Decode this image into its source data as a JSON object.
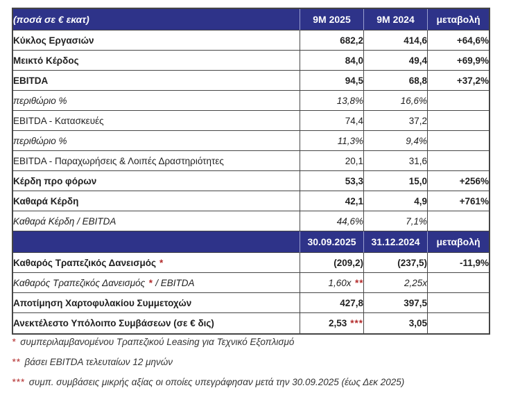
{
  "colors": {
    "header_bg": "#2E3389",
    "header_text": "#FFFFFF",
    "border": "#454545",
    "body_text": "#1F1F1F",
    "footnote_red": "#B22A2A"
  },
  "table": {
    "sections": [
      {
        "header": {
          "label": "(ποσά σε € εκατ)",
          "cols": [
            "9M 2025",
            "9M 2024",
            "μεταβολή"
          ]
        },
        "rows": [
          {
            "label": "Κύκλος Εργασιών",
            "style": "bold",
            "v1": "682,2",
            "v2": "414,6",
            "change": "+64,6%"
          },
          {
            "label": "Μεικτό Κέρδος",
            "style": "bold",
            "v1": "84,0",
            "v2": "49,4",
            "change": "+69,9%"
          },
          {
            "label": "EBITDA",
            "style": "bold",
            "v1": "94,5",
            "v2": "68,8",
            "change": "+37,2%"
          },
          {
            "label": "περιθώριο %",
            "style": "italic",
            "v1": "13,8%",
            "v2": "16,6%",
            "change": ""
          },
          {
            "label": "EBITDA - Κατασκευές",
            "style": "regular",
            "v1": "74,4",
            "v2": "37,2",
            "change": ""
          },
          {
            "label": "περιθώριο %",
            "style": "italic",
            "v1": "11,3%",
            "v2": "9,4%",
            "change": ""
          },
          {
            "label": "EBITDA - Παραχωρήσεις & Λοιπές Δραστηριότητες",
            "style": "regular",
            "v1": "20,1",
            "v2": "31,6",
            "change": ""
          },
          {
            "label": "Κέρδη προ φόρων",
            "style": "bold",
            "v1": "53,3",
            "v2": "15,0",
            "change": "+256%"
          },
          {
            "label": "Καθαρά Κέρδη",
            "style": "bold",
            "v1": "42,1",
            "v2": "4,9",
            "change": "+761%"
          },
          {
            "label": "Καθαρά Κέρδη / EBITDA",
            "style": "italic",
            "v1": "44,6%",
            "v2": "7,1%",
            "change": ""
          }
        ]
      },
      {
        "header": {
          "label": "",
          "cols": [
            "30.09.2025",
            "31.12.2024",
            "μεταβολή"
          ]
        },
        "rows": [
          {
            "label": "Καθαρός Τραπεζικός Δανεισμός",
            "label_note": "*",
            "label_after": "",
            "style": "bold",
            "v1": "(209,2)",
            "v2": "(237,5)",
            "change": "-11,9%"
          },
          {
            "label": "Καθαρός Τραπεζικός Δανεισμός",
            "label_note": "*",
            "label_after": " / EBITDA",
            "style": "italic",
            "v1": "1,60x",
            "v1_note": "**",
            "v2": "2,25x",
            "change": ""
          },
          {
            "label": "Αποτίμηση Χαρτοφυλακίου Συμμετοχών",
            "style": "bold",
            "v1": "427,8",
            "v2": "397,5",
            "change": ""
          },
          {
            "label": "Ανεκτέλεστο Υπόλοιπο Συμβάσεων (σε € δις)",
            "style": "bold",
            "v1": "2,53",
            "v1_note": "***",
            "v2": "3,05",
            "change": ""
          }
        ]
      }
    ]
  },
  "footnotes": [
    {
      "marker": "*",
      "text": "συμπεριλαμβανομένου Τραπεζικού Leasing για Τεχνικό Εξοπλισμό"
    },
    {
      "marker": "**",
      "text": "βάσει EBITDA τελευταίων 12 μηνών"
    },
    {
      "marker": "***",
      "text": "συμπ. συμβάσεις μικρής αξίας οι οποίες υπεγράφησαν μετά την 30.09.2025 (έως Δεκ 2025)"
    }
  ]
}
